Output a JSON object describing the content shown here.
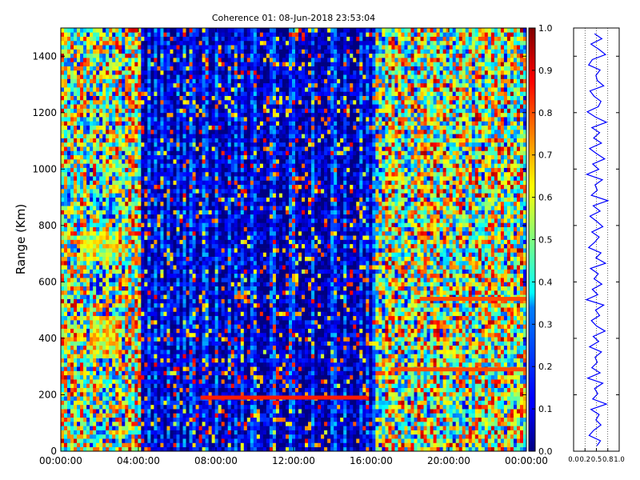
{
  "chart_data": [
    {
      "type": "heatmap",
      "title": "Coherence 01: 08-Jun-2018 23:53:04",
      "xlabel": "",
      "ylabel": "Range (Km)",
      "xlim": [
        "00:00:00",
        "24:00:00"
      ],
      "ylim": [
        0,
        1500
      ],
      "x_ticks": [
        "00:00:00",
        "04:00:00",
        "08:00:00",
        "12:00:00",
        "16:00:00",
        "20:00:00",
        "00:00:00"
      ],
      "y_ticks": [
        0,
        200,
        400,
        600,
        800,
        1000,
        1200,
        1400
      ],
      "colormap": "jet",
      "colorbar": {
        "range": [
          0.0,
          1.0
        ],
        "ticks": [
          "0.0",
          "0.1",
          "0.2",
          "0.3",
          "0.4",
          "0.5",
          "0.6",
          "0.7",
          "0.8",
          "0.9",
          "1.0"
        ]
      },
      "regions": [
        {
          "hours": [
            0,
            4.2
          ],
          "coherence_mean": 0.5
        },
        {
          "hours": [
            4.2,
            16.2
          ],
          "coherence_mean": 0.12
        },
        {
          "hours": [
            16.2,
            24
          ],
          "coherence_mean": 0.52
        }
      ],
      "features": [
        {
          "name": "echo band",
          "hours": [
            7.2,
            15.8
          ],
          "range_km": 190,
          "coherence": 0.85
        },
        {
          "name": "echo band",
          "hours": [
            17.0,
            24.0
          ],
          "range_km": 290,
          "coherence": 0.8
        },
        {
          "name": "echo band",
          "hours": [
            18.5,
            24.0
          ],
          "range_km": 540,
          "coherence": 0.8
        },
        {
          "name": "high coherence patch",
          "hours": [
            1.5,
            3.0
          ],
          "range_km": [
            330,
            480
          ],
          "coherence": 0.75
        },
        {
          "name": "high coherence patch",
          "hours": [
            1.0,
            3.0
          ],
          "range_km": [
            680,
            780
          ],
          "coherence": 0.65
        }
      ]
    },
    {
      "type": "line",
      "title": "",
      "xlabel": "",
      "ylabel": "",
      "xlim": [
        0.0,
        1.0
      ],
      "ylim": [
        0,
        1500
      ],
      "x_ticks": [
        "0.0",
        "0.2",
        "0.5",
        "0.8",
        "1.0"
      ],
      "series": [
        {
          "color": "#0000ff",
          "x": [
            0.46,
            0.62,
            0.38,
            0.55,
            0.7,
            0.41,
            0.33,
            0.58,
            0.49,
            0.52,
            0.66,
            0.36,
            0.45,
            0.6,
            0.54,
            0.3,
            0.48,
            0.72,
            0.4,
            0.57,
            0.44,
            0.61,
            0.35,
            0.5,
            0.68,
            0.42,
            0.55,
            0.29,
            0.63,
            0.47,
            0.52,
            0.39,
            0.75,
            0.43,
            0.58,
            0.36,
            0.51,
            0.64,
            0.4,
            0.56,
            0.46,
            0.33,
            0.6,
            0.49,
            0.7,
            0.37,
            0.54,
            0.45,
            0.62,
            0.41,
            0.53,
            0.28,
            0.66,
            0.48,
            0.57,
            0.39,
            0.5,
            0.69,
            0.43,
            0.55,
            0.35,
            0.61,
            0.47,
            0.52,
            0.4,
            0.58,
            0.31,
            0.64,
            0.46,
            0.53,
            0.42,
            0.72,
            0.38,
            0.56,
            0.49,
            0.6,
            0.44,
            0.34,
            0.59,
            0.51
          ],
          "y": [
            1480,
            1462,
            1443,
            1425,
            1406,
            1388,
            1369,
            1351,
            1332,
            1314,
            1295,
            1277,
            1258,
            1240,
            1221,
            1203,
            1184,
            1166,
            1147,
            1129,
            1110,
            1092,
            1073,
            1055,
            1036,
            1018,
            999,
            981,
            962,
            944,
            925,
            907,
            888,
            870,
            851,
            833,
            814,
            796,
            777,
            759,
            740,
            722,
            703,
            685,
            666,
            648,
            629,
            611,
            592,
            574,
            555,
            537,
            518,
            500,
            481,
            463,
            444,
            426,
            407,
            389,
            370,
            352,
            333,
            315,
            296,
            278,
            259,
            241,
            222,
            204,
            185,
            167,
            148,
            130,
            111,
            93,
            74,
            56,
            37,
            19
          ]
        }
      ]
    }
  ]
}
